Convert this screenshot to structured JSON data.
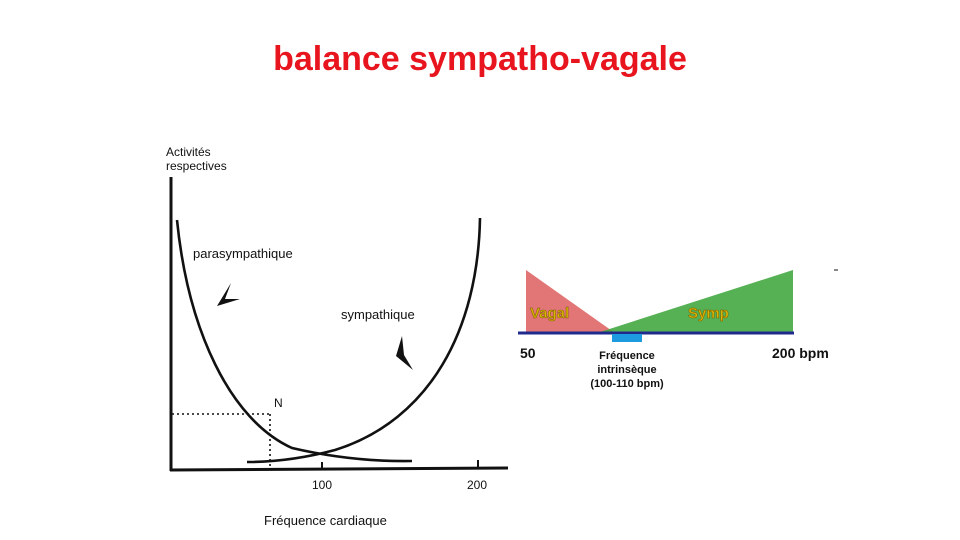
{
  "slide": {
    "title": "balance sympatho-vagale"
  },
  "left_graph": {
    "y_axis_label_line1": "Activités",
    "y_axis_label_line2": "respectives",
    "x_axis_label": "Fréquence cardiaque",
    "x_ticks": [
      "100",
      "200"
    ],
    "curve_parasympathetic_label": "parasympathique",
    "curve_sympathetic_label": "sympathique",
    "intersection_label": "N"
  },
  "right_graph": {
    "vagal_label": "Vagal",
    "symp_label": "Symp",
    "left_value_label": "50",
    "right_value_label": "200 bpm",
    "intrinsic_line1": "Fréquence",
    "intrinsic_line2": "intrinsèque",
    "intrinsic_line3": "(100-110 bpm)",
    "colors": {
      "vagal": "#e06a6a",
      "symp": "#3ea63c",
      "baseline": "#1f2a8c",
      "intrinsic_marker": "#1e9be0",
      "label_text": "#d9b400"
    }
  }
}
